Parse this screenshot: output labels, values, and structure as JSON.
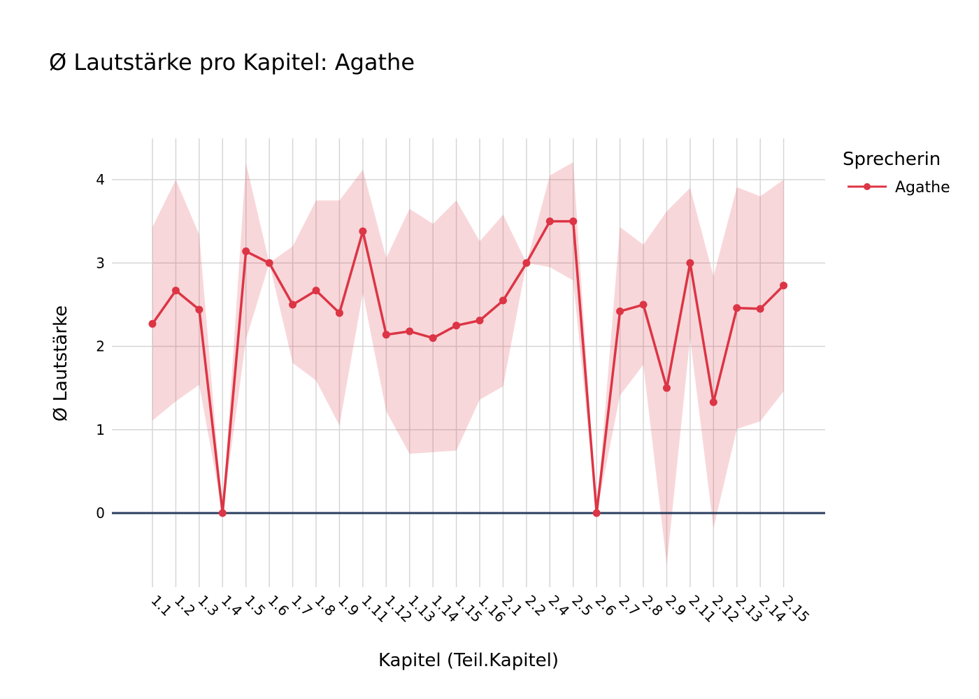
{
  "chart_data": {
    "type": "line",
    "title": "Ø Lautstärke pro Kapitel: Agathe",
    "xlabel": "Kapitel (Teil.Kapitel)",
    "ylabel": "Ø Lautstärke",
    "ylim": [
      -0.88,
      4.5
    ],
    "y_ticks": [
      0,
      1,
      2,
      3,
      4
    ],
    "grid": true,
    "legend_title": "Sprecherin",
    "legend_position": "top-right",
    "categories": [
      "1.1",
      "1.2",
      "1.3",
      "1.4",
      "1.5",
      "1.6",
      "1.7",
      "1.8",
      "1.9",
      "1.11",
      "1.12",
      "1.13",
      "1.14",
      "1.15",
      "1.16",
      "2.1",
      "2.2",
      "2.4",
      "2.5",
      "2.6",
      "2.7",
      "2.8",
      "2.9",
      "2.11",
      "2.12",
      "2.13",
      "2.14",
      "2.15"
    ],
    "series": [
      {
        "name": "Agathe",
        "color": "#dc3545",
        "band_color": "rgba(220,53,69,0.2)",
        "values": [
          2.27,
          2.67,
          2.44,
          0,
          3.14,
          3.0,
          2.5,
          2.67,
          2.4,
          3.38,
          2.14,
          2.18,
          2.1,
          2.25,
          2.31,
          2.55,
          3.0,
          3.5,
          3.5,
          0,
          2.42,
          2.5,
          1.5,
          3.0,
          1.33,
          2.46,
          2.45,
          2.73
        ],
        "upper": [
          3.43,
          4.0,
          3.34,
          0,
          4.2,
          3.0,
          3.2,
          3.75,
          3.75,
          4.12,
          3.06,
          3.65,
          3.47,
          3.75,
          3.26,
          3.58,
          3.0,
          4.05,
          4.21,
          0,
          3.43,
          3.22,
          3.62,
          3.9,
          2.84,
          3.91,
          3.8,
          4.0
        ],
        "lower": [
          1.11,
          1.34,
          1.54,
          0,
          2.08,
          3.0,
          1.8,
          1.59,
          1.05,
          2.64,
          1.22,
          0.71,
          0.73,
          0.75,
          1.36,
          1.52,
          3.0,
          2.95,
          2.79,
          0,
          1.41,
          1.78,
          -0.62,
          2.1,
          -0.18,
          1.01,
          1.1,
          1.46
        ]
      }
    ]
  }
}
